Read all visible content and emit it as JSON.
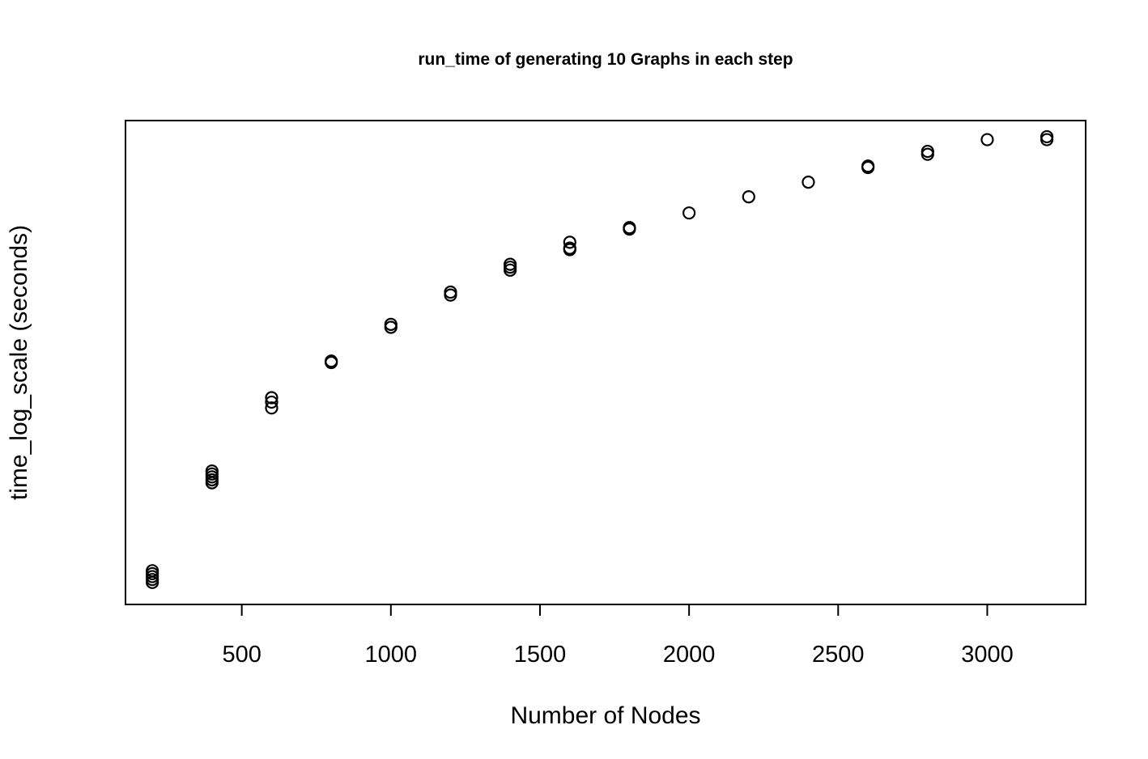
{
  "chart_data": {
    "type": "scatter",
    "title": "run_time of generating 10 Graphs in each step",
    "xlabel": "Number of Nodes",
    "ylabel": "time_log_scale (seconds)",
    "xlim": [
      110,
      3330
    ],
    "ylim": [
      -0.15,
      3.15
    ],
    "x_ticks": [
      500,
      1000,
      1500,
      2000,
      2500,
      3000
    ],
    "x_tick_labels": [
      "500",
      "1000",
      "1500",
      "2000",
      "2500",
      "3000"
    ],
    "y_ticks_shown": false,
    "grid": false,
    "legend": "none",
    "marker": "open-circle",
    "color": "#000000",
    "note_y_units": "relative log-scale level (no y tick labels are printed)",
    "points": [
      {
        "x": 200,
        "y": [
          0.0,
          0.02,
          0.04,
          0.06,
          0.08
        ]
      },
      {
        "x": 400,
        "y": [
          0.68,
          0.7,
          0.72,
          0.74,
          0.76
        ]
      },
      {
        "x": 600,
        "y": [
          1.19,
          1.23,
          1.26
        ]
      },
      {
        "x": 800,
        "y": [
          1.5,
          1.51
        ]
      },
      {
        "x": 1000,
        "y": [
          1.74,
          1.76
        ]
      },
      {
        "x": 1200,
        "y": [
          1.96,
          1.98
        ]
      },
      {
        "x": 1400,
        "y": [
          2.13,
          2.15,
          2.17
        ]
      },
      {
        "x": 1600,
        "y": [
          2.27,
          2.28,
          2.32
        ]
      },
      {
        "x": 1800,
        "y": [
          2.41,
          2.42
        ]
      },
      {
        "x": 2000,
        "y": [
          2.52
        ]
      },
      {
        "x": 2200,
        "y": [
          2.63
        ]
      },
      {
        "x": 2400,
        "y": [
          2.73
        ]
      },
      {
        "x": 2600,
        "y": [
          2.83,
          2.84
        ]
      },
      {
        "x": 2800,
        "y": [
          2.92,
          2.94
        ]
      },
      {
        "x": 3000,
        "y": [
          3.02
        ]
      },
      {
        "x": 3200,
        "y": [
          3.02,
          3.04
        ]
      }
    ]
  }
}
